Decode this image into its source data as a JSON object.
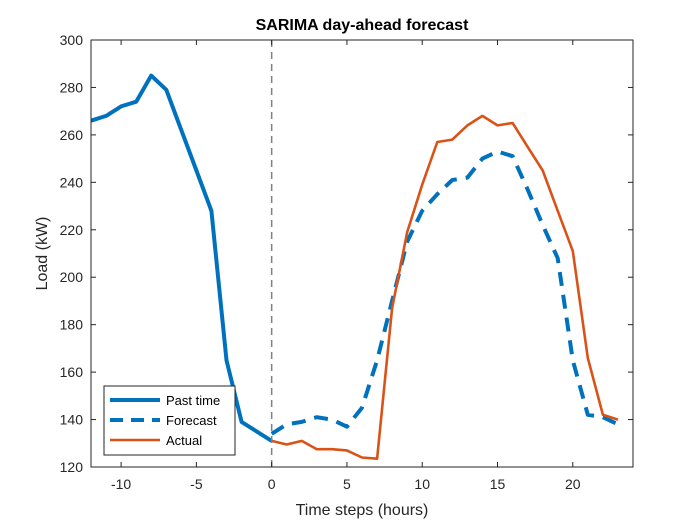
{
  "chart_data": {
    "type": "line",
    "title": "SARIMA day-ahead forecast",
    "xlabel": "Time steps (hours)",
    "ylabel": "Load (kW)",
    "xlim": [
      -12,
      24
    ],
    "ylim": [
      120,
      300
    ],
    "xticks": [
      -10,
      -5,
      0,
      5,
      10,
      15,
      20
    ],
    "yticks": [
      120,
      140,
      160,
      180,
      200,
      220,
      240,
      260,
      280,
      300
    ],
    "legend_position": "bottom-left",
    "vline_x": 0,
    "series": [
      {
        "name": "Past time",
        "color": "#0072BD",
        "style": "solid-thick",
        "x": [
          -12,
          -11,
          -10,
          -9,
          -8,
          -7,
          -6,
          -5,
          -4,
          -3,
          -2,
          -1,
          0
        ],
        "y": [
          266,
          268,
          272,
          274,
          285,
          279,
          262,
          245,
          228,
          165,
          139,
          135,
          131
        ]
      },
      {
        "name": "Forecast",
        "color": "#0072BD",
        "style": "dashed-thick",
        "x": [
          0,
          1,
          2,
          3,
          4,
          5,
          6,
          7,
          8,
          9,
          10,
          11,
          12,
          13,
          14,
          15,
          16,
          17,
          18,
          19,
          20,
          21,
          22,
          23
        ],
        "y": [
          134,
          138,
          139,
          141,
          140,
          137,
          145,
          165,
          190,
          215,
          228,
          235,
          241,
          242,
          250,
          253,
          251,
          237,
          222,
          208,
          165,
          142,
          141,
          138
        ]
      },
      {
        "name": "Actual",
        "color": "#D95319",
        "style": "solid",
        "x": [
          0,
          1,
          2,
          3,
          4,
          5,
          6,
          7,
          8,
          9,
          10,
          11,
          12,
          13,
          14,
          15,
          16,
          17,
          18,
          19,
          20,
          21,
          22,
          23
        ],
        "y": [
          131,
          129.5,
          131,
          127.5,
          127.5,
          127,
          124,
          123.5,
          187,
          219,
          239,
          257,
          258,
          264,
          268,
          264,
          265,
          255,
          245,
          228,
          211,
          166,
          142,
          140
        ]
      }
    ]
  }
}
